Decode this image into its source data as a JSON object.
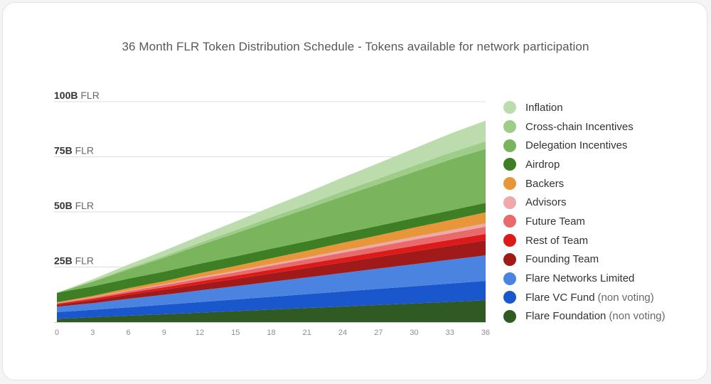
{
  "chart_data": {
    "type": "area",
    "stacked": true,
    "title": "36 Month FLR Token Distribution Schedule - Tokens available for network participation",
    "xlabel": "",
    "ylabel": "",
    "x": [
      0,
      3,
      6,
      9,
      12,
      15,
      18,
      21,
      24,
      27,
      30,
      33,
      36
    ],
    "x_ticks": [
      "0",
      "3",
      "6",
      "9",
      "12",
      "15",
      "18",
      "21",
      "24",
      "27",
      "30",
      "33",
      "36"
    ],
    "ylim": [
      0,
      100
    ],
    "y_ticks": [
      {
        "value": 25,
        "bold": "25B",
        "unit": "FLR"
      },
      {
        "value": 50,
        "bold": "50B",
        "unit": "FLR"
      },
      {
        "value": 75,
        "bold": "75B",
        "unit": "FLR"
      },
      {
        "value": 100,
        "bold": "100B",
        "unit": "FLR"
      }
    ],
    "grid": true,
    "legend_position": "right",
    "series": [
      {
        "name": "Flare Foundation",
        "note": "(non voting)",
        "color": "#2f5a23",
        "values": [
          1.5,
          2.2,
          2.9,
          3.6,
          4.3,
          5.0,
          5.7,
          6.4,
          7.1,
          7.8,
          8.5,
          9.2,
          9.9
        ]
      },
      {
        "name": "Flare VC Fund",
        "note": "(non voting)",
        "color": "#1a56cc",
        "values": [
          3.0,
          3.4,
          3.8,
          4.3,
          4.8,
          5.3,
          5.8,
          6.3,
          6.8,
          7.3,
          7.8,
          8.3,
          8.8
        ]
      },
      {
        "name": "Flare Networks Limited",
        "note": "",
        "color": "#4a84e0",
        "values": [
          2.5,
          3.0,
          3.9,
          4.5,
          5.3,
          6.0,
          6.8,
          7.6,
          8.4,
          9.2,
          10.0,
          10.8,
          11.6
        ]
      },
      {
        "name": "Founding Team",
        "note": "",
        "color": "#a11a1a",
        "values": [
          0.8,
          1.3,
          1.8,
          2.3,
          2.8,
          3.3,
          3.8,
          4.3,
          4.8,
          5.3,
          5.8,
          6.3,
          6.8
        ]
      },
      {
        "name": "Rest of Team",
        "note": "",
        "color": "#dd1a1a",
        "values": [
          0.5,
          0.7,
          0.9,
          1.1,
          1.3,
          1.5,
          1.7,
          1.9,
          2.1,
          2.3,
          2.5,
          2.7,
          2.9
        ]
      },
      {
        "name": "Future Team",
        "note": "",
        "color": "#e86a6a",
        "values": [
          0.3,
          0.5,
          0.8,
          1.0,
          1.3,
          1.5,
          1.8,
          2.0,
          2.3,
          2.5,
          2.8,
          3.0,
          3.3
        ]
      },
      {
        "name": "Advisors",
        "note": "",
        "color": "#eeaaaa",
        "values": [
          0.1,
          0.2,
          0.3,
          0.4,
          0.6,
          0.7,
          0.8,
          0.9,
          1.1,
          1.2,
          1.3,
          1.4,
          1.5
        ]
      },
      {
        "name": "Backers",
        "note": "",
        "color": "#e8963a",
        "values": [
          0.3,
          0.6,
          1.0,
          1.4,
          1.8,
          2.2,
          2.6,
          3.0,
          3.4,
          3.8,
          4.2,
          4.6,
          5.0
        ]
      },
      {
        "name": "Airdrop",
        "note": "",
        "color": "#3e7e24",
        "values": [
          4.3,
          4.3,
          4.3,
          4.3,
          4.3,
          4.3,
          4.3,
          4.3,
          4.3,
          4.3,
          4.3,
          4.3,
          4.3
        ]
      },
      {
        "name": "Delegation Incentives",
        "note": "",
        "color": "#7ab55e",
        "values": [
          0.0,
          2.1,
          4.2,
          6.3,
          8.4,
          10.5,
          12.6,
          14.7,
          16.8,
          18.9,
          21.0,
          23.1,
          24.5
        ]
      },
      {
        "name": "Cross-chain Incentives",
        "note": "",
        "color": "#9dcd88",
        "values": [
          0.0,
          0.3,
          0.6,
          0.8,
          1.1,
          1.4,
          1.7,
          1.9,
          2.2,
          2.5,
          2.8,
          3.1,
          3.4
        ]
      },
      {
        "name": "Inflation",
        "note": "",
        "color": "#bcdcae",
        "values": [
          0.0,
          0.8,
          1.6,
          2.4,
          3.1,
          3.9,
          4.7,
          5.5,
          6.3,
          7.0,
          7.8,
          8.6,
          9.4
        ]
      }
    ]
  }
}
